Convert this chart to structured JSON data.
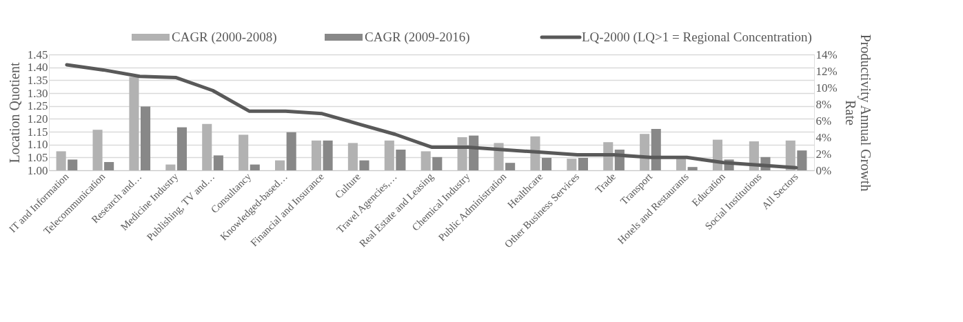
{
  "chart_data": {
    "type": "bar",
    "categories": [
      "IT and Information",
      "Telecommunication",
      "Research and…",
      "Medicine Industry",
      "Publishing, TV and…",
      "Consultancy",
      "Knowledged-based…",
      "Financial and Insurance",
      "Culture",
      "Travel Agencies,…",
      "Real Estate and Leasing",
      "Chemical Industry",
      "Public Administration",
      "Healthcare",
      "Other Business Services",
      "Trade",
      "Transport",
      "Hotels and Restaurants",
      "Education",
      "Social Institutions",
      "All Sectors"
    ],
    "series": [
      {
        "name": "CAGR (2000-2008)",
        "axis": "y2",
        "color": "#b2b2b2",
        "values": [
          2.3,
          4.9,
          11.3,
          0.7,
          5.6,
          4.3,
          1.2,
          3.6,
          3.3,
          3.6,
          2.3,
          4.0,
          3.3,
          4.1,
          1.4,
          3.4,
          4.4,
          1.4,
          3.7,
          3.5,
          3.6
        ]
      },
      {
        "name": "CAGR (2009-2016)",
        "axis": "y2",
        "color": "#888888",
        "values": [
          1.3,
          1.0,
          7.7,
          5.2,
          1.8,
          0.7,
          4.6,
          3.6,
          1.2,
          2.5,
          1.6,
          4.2,
          0.9,
          1.5,
          1.5,
          2.5,
          5.0,
          0.4,
          1.3,
          1.6,
          2.4
        ]
      },
      {
        "name": "LQ-2000 (LQ>1 = Regional Concentration)",
        "type": "line",
        "color": "#595959",
        "values": [
          1.41,
          1.39,
          1.365,
          1.36,
          1.31,
          1.23,
          1.23,
          1.22,
          1.18,
          1.14,
          1.09,
          1.09,
          1.08,
          1.07,
          1.06,
          1.06,
          1.05,
          1.05,
          1.03,
          1.02,
          1.01
        ]
      }
    ],
    "ylabel": "Location Quotient",
    "y2label": "Productivity Annual Growth Rate",
    "ylim": [
      1.0,
      1.45
    ],
    "yticks": [
      {
        "value": 1.0,
        "label": "1.00"
      },
      {
        "value": 1.05,
        "label": "1.05"
      },
      {
        "value": 1.1,
        "label": "1.10"
      },
      {
        "value": 1.15,
        "label": "1.15"
      },
      {
        "value": 1.2,
        "label": "1.20"
      },
      {
        "value": 1.25,
        "label": "1.25"
      },
      {
        "value": 1.3,
        "label": "1.30"
      },
      {
        "value": 1.35,
        "label": "1.35"
      },
      {
        "value": 1.4,
        "label": "1.40"
      },
      {
        "value": 1.45,
        "label": "1.45"
      }
    ],
    "y2lim": [
      0,
      14
    ],
    "y2ticks": [
      {
        "value": 0,
        "label": "0%"
      },
      {
        "value": 2,
        "label": "2%"
      },
      {
        "value": 4,
        "label": "4%"
      },
      {
        "value": 6,
        "label": "6%"
      },
      {
        "value": 8,
        "label": "8%"
      },
      {
        "value": 10,
        "label": "10%"
      },
      {
        "value": 12,
        "label": "12%"
      },
      {
        "value": 14,
        "label": "14%"
      }
    ],
    "grid": "y",
    "legend": "top",
    "marker": "none",
    "line_style": "solid"
  }
}
